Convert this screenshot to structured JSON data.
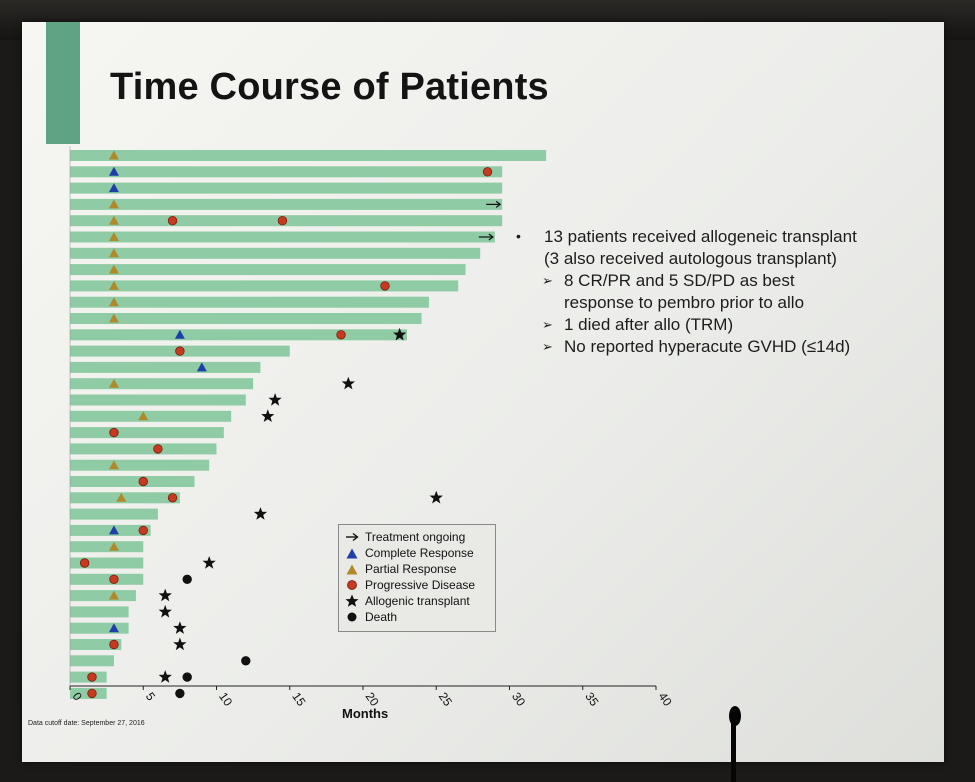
{
  "slide": {
    "title": "Time Course of Patients",
    "cutoff_note": "Data cutoff date: September 27, 2016"
  },
  "bullets": {
    "main": "13 patients received allogeneic transplant",
    "main_sub": "(3 also received autologous transplant)",
    "subs": [
      "8 CR/PR and 5 SD/PD as best",
      "response to pembro prior to allo",
      "1 died after allo (TRM)",
      "No reported hyperacute GVHD (≤14d)"
    ]
  },
  "legend": {
    "items": [
      {
        "label": "Treatment ongoing",
        "icon": "arrow-icon"
      },
      {
        "label": "Complete Response",
        "icon": "triangle-icon",
        "color": "#1f3fa8"
      },
      {
        "label": "Partial Response",
        "icon": "triangle-icon",
        "color": "#b08a2a"
      },
      {
        "label": "Progressive Disease",
        "icon": "circle-icon",
        "color": "#c63a22"
      },
      {
        "label": "Allogenic transplant",
        "icon": "star-icon",
        "color": "#111111"
      },
      {
        "label": "Death",
        "icon": "circle-icon",
        "color": "#111111"
      }
    ]
  },
  "chart_data": {
    "type": "bar",
    "orientation": "horizontal-swimmer",
    "title": "Time Course of Patients",
    "xlabel": "Months",
    "xlim": [
      0,
      40
    ],
    "xticks": [
      "0",
      "5",
      "10",
      "15",
      "20",
      "25",
      "30",
      "35",
      "40"
    ],
    "colors": {
      "bar": "#8fcba4",
      "cr": "#1f3fa8",
      "pr": "#b08a2a",
      "pd": "#c63a22",
      "transplant": "#111111",
      "death": "#111111"
    },
    "patients": [
      {
        "duration": 32.5,
        "pr": 3.0,
        "ongoing": false
      },
      {
        "duration": 29.5,
        "cr": 3.0,
        "pd": 28.5
      },
      {
        "duration": 29.5,
        "cr": 3.0
      },
      {
        "duration": 29.5,
        "pr": 3.0,
        "ongoing": true
      },
      {
        "duration": 29.5,
        "pr": 3.0,
        "pd": 7.0,
        "pd2": 14.5
      },
      {
        "duration": 29.0,
        "pr": 3.0,
        "ongoing": true
      },
      {
        "duration": 28.0,
        "pr": 3.0
      },
      {
        "duration": 27.0,
        "pr": 3.0
      },
      {
        "duration": 26.5,
        "pr": 3.0,
        "pd": 21.5
      },
      {
        "duration": 24.5,
        "pr": 3.0
      },
      {
        "duration": 24.0,
        "pr": 3.0
      },
      {
        "duration": 23.0,
        "cr": 7.5,
        "pd": 18.5,
        "transplant": 22.5
      },
      {
        "duration": 15.0,
        "pd": 7.5
      },
      {
        "duration": 13.0,
        "cr": 9.0
      },
      {
        "duration": 12.5,
        "pr": 3.0,
        "transplant": 19.0
      },
      {
        "duration": 12.0,
        "transplant": 14.0
      },
      {
        "duration": 11.0,
        "pr": 5.0,
        "transplant": 13.5
      },
      {
        "duration": 10.5,
        "pd": 3.0
      },
      {
        "duration": 10.0,
        "pd": 6.0
      },
      {
        "duration": 9.5,
        "pr": 3.0
      },
      {
        "duration": 8.5,
        "pd": 5.0
      },
      {
        "duration": 7.5,
        "pr": 3.5,
        "pd": 7.0,
        "transplant": 25.0
      },
      {
        "duration": 6.0,
        "transplant": 13.0
      },
      {
        "duration": 5.5,
        "cr": 3.0,
        "pd": 5.0
      },
      {
        "duration": 5.0,
        "pr": 3.0,
        "transplant": 26.0
      },
      {
        "duration": 5.0,
        "pd": 1.0,
        "transplant": 9.5
      },
      {
        "duration": 5.0,
        "pd": 3.0,
        "death": 8.0
      },
      {
        "duration": 4.5,
        "pr": 3.0,
        "transplant": 6.5
      },
      {
        "duration": 4.0,
        "transplant": 6.5
      },
      {
        "duration": 4.0,
        "cr": 3.0,
        "transplant": 7.5
      },
      {
        "duration": 3.5,
        "pd": 3.0,
        "transplant": 7.5
      },
      {
        "duration": 3.0,
        "death": 12.0
      },
      {
        "duration": 2.5,
        "pd": 1.5,
        "transplant": 6.5,
        "death": 8.0
      },
      {
        "duration": 2.5,
        "pd": 1.5,
        "death": 7.5
      }
    ]
  }
}
